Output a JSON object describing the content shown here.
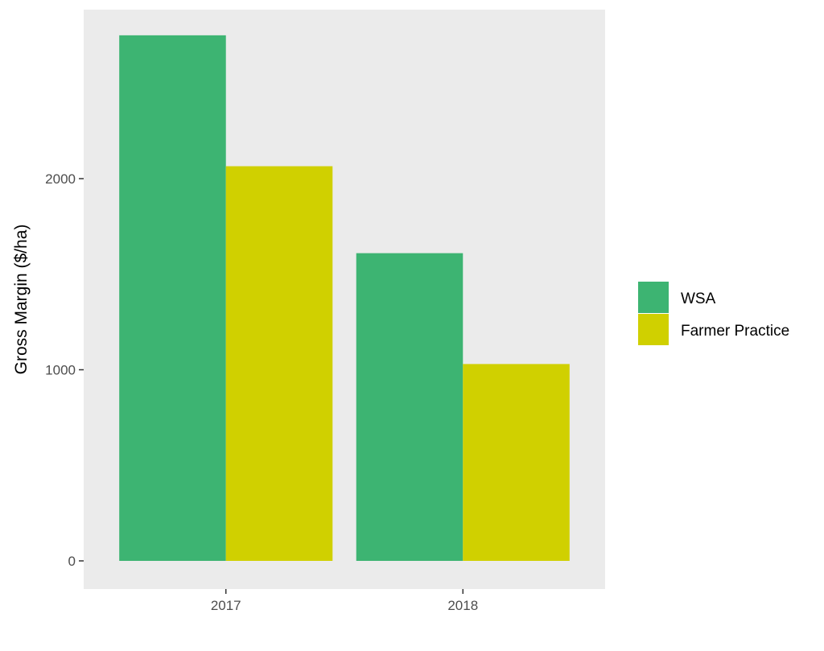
{
  "chart_data": {
    "type": "bar",
    "title": "",
    "xlabel": "",
    "ylabel": "Gross Margin ($/ha)",
    "categories": [
      "2017",
      "2018"
    ],
    "series": [
      {
        "name": "WSA",
        "values": [
          2750,
          1610
        ],
        "color": "#3db472"
      },
      {
        "name": "Farmer Practice",
        "values": [
          2065,
          1030
        ],
        "color": "#d0d000"
      }
    ],
    "yticks": [
      0,
      1000,
      2000
    ],
    "ytick_labels": [
      "0",
      "1000",
      "2000"
    ],
    "ylim": [
      -65,
      2890
    ],
    "grid": false,
    "panel_background": "#ebebeb",
    "legend": {
      "placement": "right"
    }
  }
}
